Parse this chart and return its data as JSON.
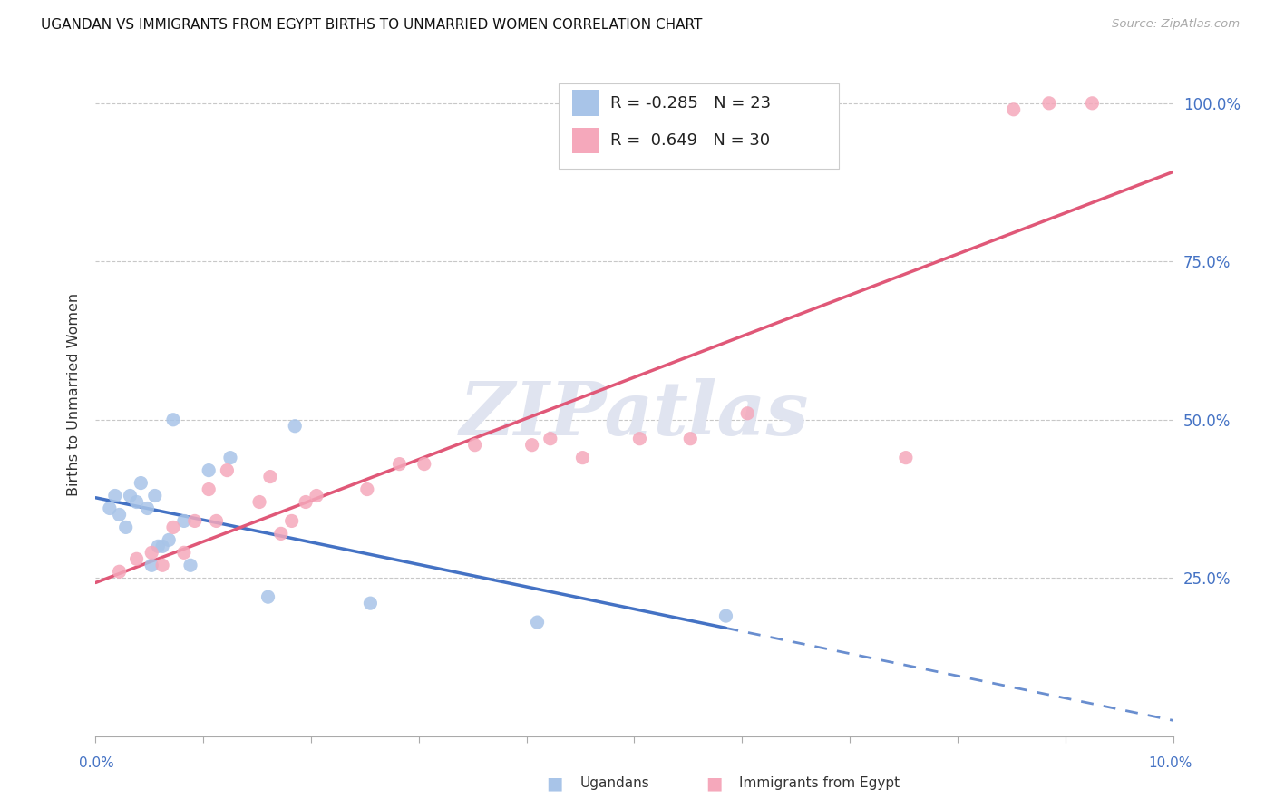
{
  "title": "UGANDAN VS IMMIGRANTS FROM EGYPT BIRTHS TO UNMARRIED WOMEN CORRELATION CHART",
  "source": "Source: ZipAtlas.com",
  "ylabel": "Births to Unmarried Women",
  "xmin": 0.0,
  "xmax": 10.0,
  "ymin": 0.0,
  "ymax": 108.0,
  "ytick_vals": [
    0,
    25,
    50,
    75,
    100
  ],
  "ytick_labels": [
    "",
    "25.0%",
    "50.0%",
    "75.0%",
    "100.0%"
  ],
  "xtick_vals": [
    0.0,
    1.0,
    2.0,
    3.0,
    4.0,
    5.0,
    6.0,
    7.0,
    8.0,
    9.0,
    10.0
  ],
  "legend_r1": "R = -0.285",
  "legend_n1": "N = 23",
  "legend_r2": "R =  0.649",
  "legend_n2": "N = 30",
  "ugandan_color": "#a8c4e8",
  "egypt_color": "#f5a8bb",
  "trend_ugandan_color": "#4472c4",
  "trend_egypt_color": "#e05878",
  "watermark_color": "#e0e4f0",
  "ugandan_x": [
    0.13,
    0.18,
    0.22,
    0.28,
    0.32,
    0.38,
    0.42,
    0.48,
    0.52,
    0.55,
    0.58,
    0.62,
    0.68,
    0.72,
    0.82,
    0.88,
    1.05,
    1.25,
    1.6,
    1.85,
    2.55,
    4.1,
    5.85
  ],
  "ugandan_y": [
    36,
    38,
    35,
    33,
    38,
    37,
    40,
    36,
    27,
    38,
    30,
    30,
    31,
    50,
    34,
    27,
    42,
    44,
    22,
    49,
    21,
    18,
    19
  ],
  "egypt_x": [
    0.22,
    0.38,
    0.52,
    0.62,
    0.72,
    0.82,
    0.92,
    1.05,
    1.12,
    1.22,
    1.52,
    1.62,
    1.72,
    1.82,
    1.95,
    2.05,
    2.52,
    2.82,
    3.05,
    3.52,
    4.05,
    4.22,
    4.52,
    5.05,
    5.52,
    6.05,
    7.52,
    8.52,
    8.85,
    9.25
  ],
  "egypt_y": [
    26,
    28,
    29,
    27,
    33,
    29,
    34,
    39,
    34,
    42,
    37,
    41,
    32,
    34,
    37,
    38,
    39,
    43,
    43,
    46,
    46,
    47,
    44,
    47,
    47,
    51,
    44,
    99,
    100,
    100
  ]
}
